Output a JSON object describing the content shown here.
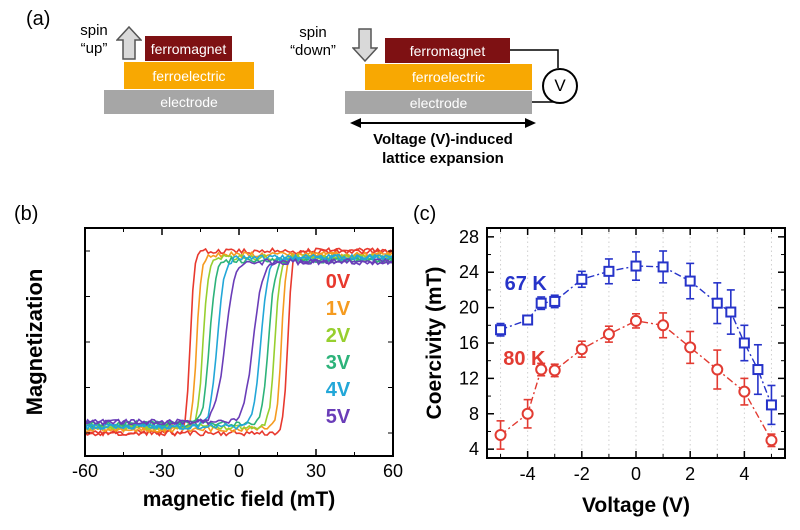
{
  "colors": {
    "ferromagnet": "#7e1113",
    "ferroelectric": "#f8a802",
    "electrode": "#a6a6a6",
    "series_67K": "#2633c9",
    "series_80K": "#e23b32",
    "arrow_fill": "#d9d9d9",
    "arrow_stroke": "#555555"
  },
  "panel_a": {
    "label": "(a)",
    "spin_up": {
      "line1": "spin",
      "line2": "“up”"
    },
    "spin_down": {
      "line1": "spin",
      "line2": "“down”"
    },
    "stack_left": {
      "ferromagnet": "ferromagnet",
      "ferroelectric": "ferroelectric",
      "electrode": "electrode"
    },
    "stack_right": {
      "ferromagnet": "ferromagnet",
      "ferroelectric": "ferroelectric",
      "electrode": "electrode"
    },
    "voltmeter_label": "V",
    "caption_line1": "Voltage (V)-induced",
    "caption_line2": "lattice expansion"
  },
  "panel_b": {
    "label": "(b)"
  },
  "panel_c": {
    "label": "(c)"
  },
  "chart_data": [
    {
      "id": "magnetization-hysteresis",
      "type": "line",
      "title": "",
      "xlabel": "magnetic field (mT)",
      "ylabel": "Magnetization",
      "xlim": [
        -60,
        60
      ],
      "xticks": [
        -60,
        -30,
        0,
        30,
        60
      ],
      "x_minor_ticks": [
        -45,
        -15,
        15,
        45
      ],
      "ylim": [
        -1.25,
        1.25
      ],
      "grid": false,
      "legend_position": "inside-right",
      "series": [
        {
          "name": "0V",
          "color": "#e8392e",
          "coercivity_mT": 19.0,
          "saturation": 1.0,
          "transition_width_mT": 1.6
        },
        {
          "name": "1V",
          "color": "#f59b20",
          "coercivity_mT": 16.5,
          "saturation": 0.96,
          "transition_width_mT": 1.8
        },
        {
          "name": "2V",
          "color": "#97cf2f",
          "coercivity_mT": 14.0,
          "saturation": 0.93,
          "transition_width_mT": 2.0
        },
        {
          "name": "3V",
          "color": "#2db37a",
          "coercivity_mT": 11.5,
          "saturation": 0.9,
          "transition_width_mT": 2.4
        },
        {
          "name": "4V",
          "color": "#22a7d8",
          "coercivity_mT": 8.5,
          "saturation": 0.93,
          "transition_width_mT": 2.8
        },
        {
          "name": "5V",
          "color": "#6a3db8",
          "coercivity_mT": 5.5,
          "saturation": 0.88,
          "transition_width_mT": 3.6
        }
      ],
      "note": "magnetic hysteresis loops at applied voltages 0-5 V; loop width (coercivity) shrinks as voltage increases"
    },
    {
      "id": "coercivity-vs-voltage",
      "type": "scatter",
      "title": "",
      "xlabel": "Voltage (V)",
      "ylabel": "Coercivity (mT)",
      "xlim": [
        -5.5,
        5.5
      ],
      "ylim": [
        3,
        29
      ],
      "xticks": [
        -4,
        -2,
        0,
        2,
        4
      ],
      "x_minor_ticks": [
        -5,
        -3,
        -1,
        1,
        3,
        5
      ],
      "yticks": [
        4,
        8,
        12,
        16,
        20,
        24,
        28
      ],
      "y_minor_ticks": [
        6,
        10,
        14,
        18,
        22,
        26
      ],
      "grid_vertical_at": [
        -5,
        -4,
        -3,
        -2,
        -1,
        0,
        1,
        2,
        3,
        4,
        5
      ],
      "series": [
        {
          "name": "67 K",
          "color": "#2633c9",
          "marker": "square",
          "x": [
            -5,
            -4,
            -3.5,
            -3,
            -2,
            -1,
            0,
            1,
            2,
            3,
            3.5,
            4,
            4.5,
            5
          ],
          "y": [
            17.5,
            18.6,
            20.5,
            20.7,
            23.2,
            24.1,
            24.7,
            24.6,
            23.0,
            20.5,
            19.5,
            16.0,
            13.0,
            9.0
          ],
          "yerr": [
            0.7,
            0.5,
            0.7,
            0.7,
            0.9,
            1.4,
            1.6,
            1.8,
            2.0,
            2.3,
            2.5,
            2.0,
            2.8,
            2.2
          ]
        },
        {
          "name": "80 K",
          "color": "#e23b32",
          "marker": "circle",
          "x": [
            -5,
            -4,
            -3.5,
            -3,
            -2,
            -1,
            0,
            1,
            2,
            3,
            4,
            5
          ],
          "y": [
            5.6,
            8.0,
            13.0,
            12.9,
            15.3,
            17.0,
            18.5,
            18.0,
            15.5,
            13.0,
            10.5,
            5.0
          ],
          "yerr": [
            1.6,
            1.6,
            0.7,
            0.7,
            0.9,
            0.9,
            0.8,
            1.4,
            1.8,
            2.2,
            1.5,
            0.7
          ]
        }
      ],
      "annotations": [
        {
          "text": "67 K",
          "x": -4.85,
          "y": 22.0,
          "color": "#2633c9"
        },
        {
          "text": "80 K",
          "x": -4.9,
          "y": 13.5,
          "color": "#e23b32"
        }
      ]
    }
  ]
}
